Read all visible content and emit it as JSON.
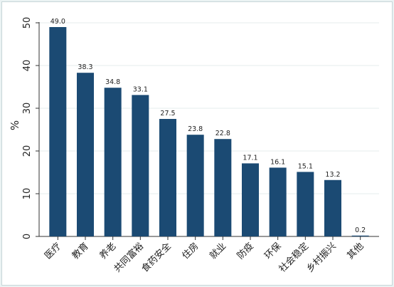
{
  "chart_data": {
    "type": "bar",
    "ylabel": "%",
    "ylim": [
      0,
      50
    ],
    "yticks": [
      0,
      10,
      20,
      30,
      40,
      50
    ],
    "categories": [
      "医疗",
      "教育",
      "养老",
      "共同富裕",
      "食药安全",
      "住房",
      "就业",
      "防疫",
      "环保",
      "社会稳定",
      "乡村振兴",
      "其他"
    ],
    "values": [
      49.0,
      38.3,
      34.8,
      33.1,
      27.5,
      23.8,
      22.8,
      17.1,
      16.1,
      15.1,
      13.2,
      0.2
    ],
    "data_labels": [
      "49.0",
      "38.3",
      "34.8",
      "33.1",
      "27.5",
      "23.8",
      "22.8",
      "17.1",
      "16.1",
      "15.1",
      "13.2",
      "0.2"
    ],
    "bar_color": "#1b4a73",
    "grid": true,
    "grid_color": "#e6eced",
    "legend": "none"
  }
}
